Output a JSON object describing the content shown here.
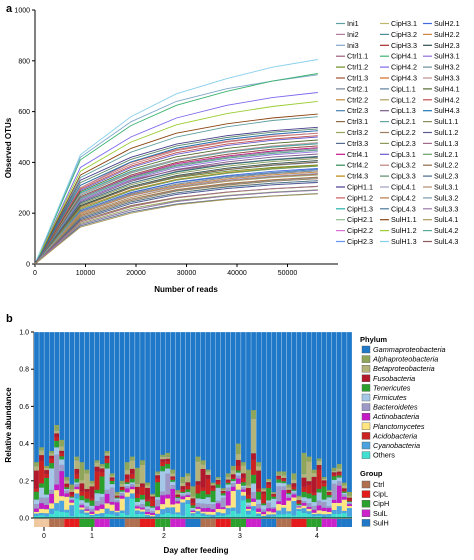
{
  "chart_data": [
    {
      "type": "line",
      "panel_label": "a",
      "title": "",
      "xlabel": "Number of reads",
      "ylabel": "Observed OTUs",
      "xlim": [
        0,
        60000
      ],
      "ylim": [
        0,
        1000
      ],
      "x_ticks": [
        "0",
        "10000",
        "20000",
        "30000",
        "40000",
        "50000"
      ],
      "y_ticks": [
        "0",
        "200",
        "400",
        "600",
        "800",
        "1000"
      ],
      "legend_placement": "right",
      "x": [
        0,
        9000,
        19000,
        28000,
        38000,
        47000,
        56000
      ],
      "series": [
        {
          "name": "Ini1",
          "color": "#5f9ea0",
          "values": [
            0,
            340,
            440,
            500,
            540,
            565,
            580
          ]
        },
        {
          "name": "Ini2",
          "color": "#b07aa1",
          "values": [
            0,
            300,
            400,
            455,
            490,
            510,
            525
          ]
        },
        {
          "name": "Ini3",
          "color": "#7fa7c9",
          "values": [
            0,
            420,
            560,
            640,
            690,
            720,
            745
          ]
        },
        {
          "name": "Ctrl1.1",
          "color": "#9c5a7a",
          "values": [
            0,
            250,
            330,
            370,
            395,
            410,
            420
          ]
        },
        {
          "name": "Ctrl1.2",
          "color": "#6b8e23",
          "values": [
            0,
            230,
            300,
            340,
            365,
            380,
            390
          ]
        },
        {
          "name": "Ctrl1.3",
          "color": "#a0522d",
          "values": [
            0,
            200,
            270,
            305,
            330,
            345,
            355
          ]
        },
        {
          "name": "Ctrl2.1",
          "color": "#708090",
          "values": [
            0,
            190,
            255,
            290,
            315,
            330,
            340
          ]
        },
        {
          "name": "Ctrl2.2",
          "color": "#c48a3a",
          "values": [
            0,
            180,
            245,
            280,
            305,
            318,
            328
          ]
        },
        {
          "name": "Ctrl2.3",
          "color": "#4682b4",
          "values": [
            0,
            210,
            280,
            320,
            345,
            360,
            372
          ]
        },
        {
          "name": "Ctrl3.1",
          "color": "#8b6f47",
          "values": [
            0,
            170,
            230,
            262,
            283,
            296,
            305
          ]
        },
        {
          "name": "Ctrl3.2",
          "color": "#9aa55b",
          "values": [
            0,
            160,
            218,
            250,
            270,
            283,
            292
          ]
        },
        {
          "name": "Ctrl3.3",
          "color": "#556b8d",
          "values": [
            0,
            150,
            205,
            236,
            256,
            268,
            277
          ]
        },
        {
          "name": "Ctrl4.1",
          "color": "#c71585",
          "values": [
            0,
            260,
            345,
            395,
            425,
            445,
            458
          ]
        },
        {
          "name": "Ctrl4.2",
          "color": "#2e8b57",
          "values": [
            0,
            240,
            318,
            362,
            392,
            410,
            422
          ]
        },
        {
          "name": "Ctrl4.3",
          "color": "#b8860b",
          "values": [
            0,
            220,
            292,
            333,
            360,
            376,
            388
          ]
        },
        {
          "name": "CipH1.1",
          "color": "#483d8b",
          "values": [
            0,
            330,
            420,
            472,
            505,
            525,
            538
          ]
        },
        {
          "name": "CipH1.2",
          "color": "#cd5c5c",
          "values": [
            0,
            310,
            400,
            450,
            483,
            503,
            515
          ]
        },
        {
          "name": "CipH1.3",
          "color": "#20b2aa",
          "values": [
            0,
            280,
            365,
            412,
            442,
            462,
            474
          ]
        },
        {
          "name": "CipH2.1",
          "color": "#8fbc8f",
          "values": [
            0,
            195,
            262,
            300,
            325,
            340,
            350
          ]
        },
        {
          "name": "CipH2.2",
          "color": "#da70d6",
          "values": [
            0,
            185,
            250,
            287,
            311,
            326,
            336
          ]
        },
        {
          "name": "CipH2.3",
          "color": "#6495ed",
          "values": [
            0,
            175,
            238,
            274,
            297,
            312,
            322
          ]
        },
        {
          "name": "CipH3.1",
          "color": "#bdb76b",
          "values": [
            0,
            165,
            225,
            260,
            282,
            296,
            306
          ]
        },
        {
          "name": "CipH3.2",
          "color": "#4b8b9b",
          "values": [
            0,
            155,
            212,
            246,
            268,
            282,
            291
          ]
        },
        {
          "name": "CipH3.3",
          "color": "#a52a2a",
          "values": [
            0,
            205,
            275,
            314,
            340,
            356,
            367
          ]
        },
        {
          "name": "CipH4.1",
          "color": "#3cb371",
          "values": [
            0,
            410,
            545,
            625,
            680,
            720,
            750
          ]
        },
        {
          "name": "CipH4.2",
          "color": "#7b68ee",
          "values": [
            0,
            380,
            500,
            575,
            625,
            655,
            675
          ]
        },
        {
          "name": "CipH4.3",
          "color": "#d2691e",
          "values": [
            0,
            265,
            350,
            400,
            432,
            452,
            465
          ]
        },
        {
          "name": "CipL1.1",
          "color": "#5f7fa0",
          "values": [
            0,
            225,
            300,
            343,
            371,
            388,
            400
          ]
        },
        {
          "name": "CipL1.2",
          "color": "#b0a060",
          "values": [
            0,
            215,
            288,
            330,
            357,
            374,
            385
          ]
        },
        {
          "name": "CipL1.3",
          "color": "#7a5c8a",
          "values": [
            0,
            245,
            325,
            372,
            402,
            421,
            433
          ]
        },
        {
          "name": "CipL2.1",
          "color": "#66a3a3",
          "values": [
            0,
            270,
            358,
            408,
            440,
            460,
            473
          ]
        },
        {
          "name": "CipL2.2",
          "color": "#9c7c5c",
          "values": [
            0,
            255,
            338,
            386,
            417,
            436,
            449
          ]
        },
        {
          "name": "CipL2.3",
          "color": "#8a9a5b",
          "values": [
            0,
            235,
            312,
            356,
            385,
            403,
            415
          ]
        },
        {
          "name": "CipL3.1",
          "color": "#6a5acd",
          "values": [
            0,
            290,
            380,
            432,
            466,
            487,
            500
          ]
        },
        {
          "name": "CipL3.2",
          "color": "#c08080",
          "values": [
            0,
            300,
            392,
            446,
            480,
            501,
            515
          ]
        },
        {
          "name": "CipL3.3",
          "color": "#5a8a6a",
          "values": [
            0,
            320,
            412,
            465,
            498,
            519,
            532
          ]
        },
        {
          "name": "CipL4.1",
          "color": "#a0a0c0",
          "values": [
            0,
            200,
            268,
            306,
            331,
            346,
            357
          ]
        },
        {
          "name": "CipL4.2",
          "color": "#b47a4a",
          "values": [
            0,
            190,
            256,
            293,
            317,
            332,
            342
          ]
        },
        {
          "name": "CipL4.3",
          "color": "#4a7a9a",
          "values": [
            0,
            180,
            244,
            280,
            303,
            318,
            328
          ]
        },
        {
          "name": "SulH1.1",
          "color": "#8b4513",
          "values": [
            0,
            350,
            455,
            515,
            552,
            575,
            590
          ]
        },
        {
          "name": "SulH1.2",
          "color": "#9acd32",
          "values": [
            0,
            365,
            480,
            548,
            592,
            620,
            640
          ]
        },
        {
          "name": "SulH1.3",
          "color": "#87ceeb",
          "values": [
            0,
            430,
            580,
            670,
            730,
            775,
            805
          ]
        },
        {
          "name": "SulH2.1",
          "color": "#4169e1",
          "values": [
            0,
            210,
            282,
            322,
            348,
            365,
            376
          ]
        },
        {
          "name": "SulH2.2",
          "color": "#cd853f",
          "values": [
            0,
            200,
            270,
            310,
            335,
            351,
            362
          ]
        },
        {
          "name": "SulH2.3",
          "color": "#2f4f4f",
          "values": [
            0,
            230,
            305,
            348,
            377,
            395,
            407
          ]
        },
        {
          "name": "SulH3.1",
          "color": "#9370db",
          "values": [
            0,
            250,
            332,
            380,
            410,
            430,
            442
          ]
        },
        {
          "name": "SulH3.2",
          "color": "#6b8e9b",
          "values": [
            0,
            260,
            342,
            390,
            421,
            441,
            454
          ]
        },
        {
          "name": "SulH3.3",
          "color": "#bc8f8f",
          "values": [
            0,
            275,
            362,
            412,
            444,
            465,
            478
          ]
        },
        {
          "name": "SulH4.1",
          "color": "#556b2f",
          "values": [
            0,
            285,
            372,
            422,
            455,
            475,
            488
          ]
        },
        {
          "name": "SulH4.2",
          "color": "#c0504d",
          "values": [
            0,
            295,
            385,
            438,
            472,
            492,
            505
          ]
        },
        {
          "name": "SulH4.3",
          "color": "#1f77b4",
          "values": [
            0,
            310,
            402,
            456,
            490,
            511,
            525
          ]
        },
        {
          "name": "SulL1.1",
          "color": "#8c8c5a",
          "values": [
            0,
            185,
            250,
            287,
            311,
            326,
            336
          ]
        },
        {
          "name": "SulL1.2",
          "color": "#5a5a8c",
          "values": [
            0,
            175,
            238,
            274,
            297,
            312,
            321
          ]
        },
        {
          "name": "SulL1.3",
          "color": "#a06a8a",
          "values": [
            0,
            165,
            226,
            261,
            283,
            297,
            306
          ]
        },
        {
          "name": "SulL2.1",
          "color": "#6aa06a",
          "values": [
            0,
            215,
            288,
            330,
            357,
            374,
            386
          ]
        },
        {
          "name": "SulL2.2",
          "color": "#8a6a4a",
          "values": [
            0,
            225,
            300,
            344,
            372,
            390,
            402
          ]
        },
        {
          "name": "SulL2.3",
          "color": "#4a6a8a",
          "values": [
            0,
            240,
            318,
            364,
            393,
            412,
            424
          ]
        },
        {
          "name": "SulL3.1",
          "color": "#b08a6a",
          "values": [
            0,
            195,
            262,
            301,
            326,
            342,
            352
          ]
        },
        {
          "name": "SulL3.2",
          "color": "#7a9aaa",
          "values": [
            0,
            205,
            274,
            314,
            340,
            356,
            367
          ]
        },
        {
          "name": "SulL3.3",
          "color": "#9a7aaa",
          "values": [
            0,
            155,
            212,
            246,
            268,
            281,
            290
          ]
        },
        {
          "name": "SulL4.1",
          "color": "#aa9a5a",
          "values": [
            0,
            145,
            200,
            233,
            254,
            267,
            276
          ]
        },
        {
          "name": "SulL4.2",
          "color": "#5aaa9a",
          "values": [
            0,
            255,
            337,
            385,
            416,
            435,
            448
          ]
        },
        {
          "name": "SulL4.3",
          "color": "#8a5a5a",
          "values": [
            0,
            265,
            350,
            400,
            432,
            452,
            465
          ]
        }
      ]
    },
    {
      "type": "bar",
      "stacked": true,
      "panel_label": "b",
      "title": "",
      "xlabel": "Day after feeding",
      "ylabel": "Relative abundance",
      "ylim": [
        0,
        1.0
      ],
      "y_ticks": [
        "0.0",
        "0.2",
        "0.4",
        "0.6",
        "0.8",
        "1.0"
      ],
      "x_group_labels": [
        "0",
        "1",
        "2",
        "3",
        "4"
      ],
      "num_bars": 63,
      "phylum_legend_title": "Phylum",
      "phyla": [
        {
          "name": "Gammaproteobacteria",
          "color": "#1f78c8"
        },
        {
          "name": "Alphaproteobacteria",
          "color": "#8fa65a"
        },
        {
          "name": "Betaproteobacteria",
          "color": "#b3b37a"
        },
        {
          "name": "Fusobacteria",
          "color": "#b2182b"
        },
        {
          "name": "Tenericutes",
          "color": "#2ca02c"
        },
        {
          "name": "Firmicutes",
          "color": "#a6c8e8"
        },
        {
          "name": "Bacteroidetes",
          "color": "#9e9ac8"
        },
        {
          "name": "Actinobacteria",
          "color": "#c51bc5"
        },
        {
          "name": "Planctomycetes",
          "color": "#ffe680"
        },
        {
          "name": "Acidobacteria",
          "color": "#cc2222"
        },
        {
          "name": "Cyanobacteria",
          "color": "#4aa3df"
        },
        {
          "name": "Others",
          "color": "#40e0d0"
        }
      ],
      "group_legend_title": "Group",
      "groups": [
        {
          "name": "Ctrl",
          "color": "#b07050"
        },
        {
          "name": "CipL",
          "color": "#e41a1c"
        },
        {
          "name": "CipH",
          "color": "#2ca02c"
        },
        {
          "name": "SulL",
          "color": "#cc22cc"
        },
        {
          "name": "SulH",
          "color": "#1f78c8"
        }
      ],
      "bar_totals_non_gamma": [
        0.3,
        0.38,
        0.28,
        0.36,
        0.5,
        0.42,
        0.22,
        0.18,
        0.33,
        0.3,
        0.26,
        0.2,
        0.31,
        0.29,
        0.36,
        0.24,
        0.14,
        0.2,
        0.3,
        0.33,
        0.27,
        0.31,
        0.19,
        0.13,
        0.25,
        0.34,
        0.35,
        0.26,
        0.15,
        0.22,
        0.24,
        0.17,
        0.33,
        0.31,
        0.26,
        0.19,
        0.22,
        0.16,
        0.24,
        0.28,
        0.4,
        0.3,
        0.26,
        0.58,
        0.3,
        0.16,
        0.21,
        0.14,
        0.25,
        0.25,
        0.18,
        0.24,
        0.12,
        0.35,
        0.33,
        0.26,
        0.32,
        0.22,
        0.15,
        0.27,
        0.29,
        0.19,
        0.14
      ]
    }
  ],
  "legend_a": {
    "col1": [
      "Ini1",
      "Ini2",
      "Ini3",
      "Ctrl1.1",
      "Ctrl1.2",
      "Ctrl1.3",
      "Ctrl2.1",
      "Ctrl2.2",
      "Ctrl2.3",
      "Ctrl3.1",
      "Ctrl3.2",
      "Ctrl3.3",
      "Ctrl4.1",
      "Ctrl4.2",
      "Ctrl4.3",
      "CipH1.1",
      "CipH1.2",
      "CipH1.3",
      "CipH2.1",
      "CipH2.2",
      "CipH2.3"
    ],
    "col2": [
      "CipH3.1",
      "CipH3.2",
      "CipH3.3",
      "CipH4.1",
      "CipH4.2",
      "CipH4.3",
      "CipL1.1",
      "CipL1.2",
      "CipL1.3",
      "CipL2.1",
      "CipL2.2",
      "CipL2.3",
      "CipL3.1",
      "CipL3.2",
      "CipL3.3",
      "CipL4.1",
      "CipL4.2",
      "CipL4.3",
      "SulH1.1",
      "SulH1.2",
      "SulH1.3"
    ],
    "col3": [
      "SulH2.1",
      "SulH2.2",
      "SulH2.3",
      "SulH3.1",
      "SulH3.2",
      "SulH3.3",
      "SulH4.1",
      "SulH4.2",
      "SulH4.3",
      "SulL1.1",
      "SulL1.2",
      "SulL1.3",
      "SulL2.1",
      "SulL2.2",
      "SulL2.3",
      "SulL3.1",
      "SulL3.2",
      "SulL3.3",
      "SulL4.1",
      "SulL4.2",
      "SulL4.3"
    ]
  }
}
